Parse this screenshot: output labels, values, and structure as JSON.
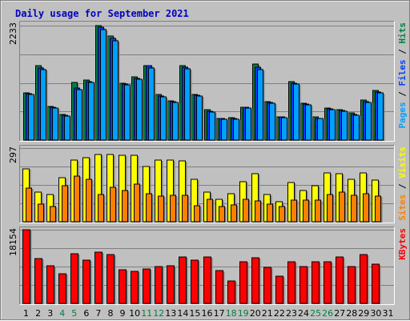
{
  "chart_data": {
    "type": "bar",
    "title": "Daily usage for September 2021",
    "categories": [
      "1",
      "2",
      "3",
      "4",
      "5",
      "6",
      "7",
      "8",
      "9",
      "10",
      "11",
      "12",
      "13",
      "14",
      "15",
      "16",
      "17",
      "18",
      "19",
      "20",
      "21",
      "22",
      "23",
      "24",
      "25",
      "26",
      "27",
      "28",
      "29",
      "30",
      "31"
    ],
    "weekend_days": [
      4,
      5,
      11,
      12,
      18,
      19,
      25,
      26
    ],
    "panels": [
      {
        "id": "hits_files_pages",
        "ymax": 2233,
        "ymax_label": "2233",
        "right_label": [
          "Pages",
          " / ",
          "Files",
          " / ",
          "Hits"
        ],
        "right_label_colors": [
          "#00a0ff",
          "#000000",
          "#0040ff",
          "#000000",
          "#008040"
        ],
        "series": [
          {
            "name": "Hits",
            "color": "#008040",
            "values": [
              928,
              1453,
              661,
              492,
              1119,
              1165,
              2226,
              2030,
              1111,
              1227,
              1449,
              888,
              767,
              1446,
              893,
              592,
              422,
              437,
              648,
              1484,
              748,
              452,
              1143,
              724,
              446,
              632,
              593,
              527,
              780,
              968,
              0
            ]
          },
          {
            "name": "Files",
            "color": "#0040ff",
            "values": [
              904,
              1402,
              643,
              478,
              1016,
              1142,
              2197,
              1980,
              1096,
              1205,
              1449,
              866,
              753,
              1417,
              876,
              566,
              414,
              427,
              633,
              1419,
              738,
              450,
              1111,
              697,
              428,
              609,
              582,
              493,
              753,
              934,
              0
            ]
          },
          {
            "name": "Pages",
            "color": "#00a0ff",
            "values": [
              889,
              1380,
              624,
              465,
              980,
              1128,
              2160,
              1940,
              1080,
              1185,
              1410,
              850,
              735,
              1390,
              860,
              550,
              400,
              410,
              620,
              1380,
              720,
              440,
              1090,
              680,
              420,
              590,
              560,
              480,
              740,
              920,
              0
            ]
          }
        ]
      },
      {
        "id": "visits_sites",
        "ymax": 297,
        "ymax_label": "297",
        "right_label": [
          "Sites",
          " / ",
          "Visits"
        ],
        "right_label_colors": [
          "#ff8000",
          "#000000",
          "#ffff00"
        ],
        "series": [
          {
            "name": "Visits",
            "color": "#ffff00",
            "values": [
              212,
              119,
              109,
              176,
              247,
              258,
              272,
              272,
              267,
              267,
              224,
              247,
              247,
              244,
              171,
              120,
              92,
              114,
              162,
              194,
              111,
              80,
              159,
              127,
              144,
              198,
              194,
              171,
              196,
              167,
              0
            ]
          },
          {
            "name": "Sites",
            "color": "#ff8000",
            "values": [
              136,
              72,
              60,
              144,
              184,
              170,
              109,
              138,
              126,
              152,
              112,
              104,
              108,
              107,
              66,
              90,
              61,
              68,
              92,
              84,
              72,
              60,
              88,
              86,
              86,
              109,
              118,
              105,
              114,
              104,
              0
            ]
          }
        ]
      },
      {
        "id": "kbytes",
        "ymax": 18154,
        "ymax_label": "18154",
        "right_label": [
          "KBytes"
        ],
        "right_label_colors": [
          "#ff0000"
        ],
        "series": [
          {
            "name": "KBytes",
            "color": "#ff0000",
            "values": [
              18154,
              11040,
              9360,
              7310,
              12232,
              10640,
              12600,
              11960,
              8190,
              7840,
              8450,
              9010,
              9180,
              11510,
              10680,
              11360,
              8020,
              5560,
              10330,
              11280,
              8810,
              6650,
              10330,
              9010,
              10170,
              10170,
              11480,
              9100,
              12130,
              9630,
              0
            ]
          }
        ]
      }
    ]
  }
}
